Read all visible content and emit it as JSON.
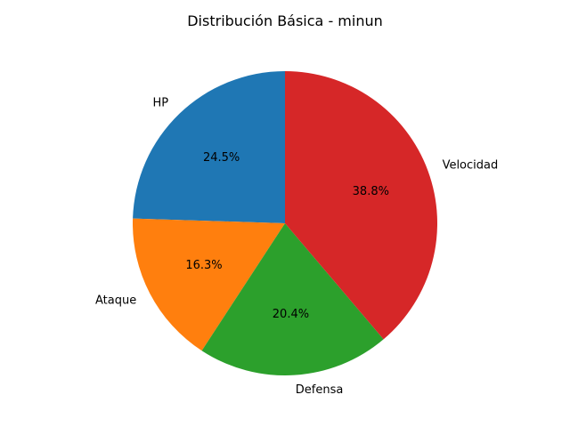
{
  "chart_data": {
    "type": "pie",
    "title": "Distribución Básica - minun",
    "categories": [
      "HP",
      "Ataque",
      "Defensa",
      "Velocidad"
    ],
    "values": [
      24.5,
      16.3,
      20.4,
      38.8
    ],
    "percent_labels": [
      "24.5%",
      "16.3%",
      "20.4%",
      "38.8%"
    ],
    "colors": [
      "#1f77b4",
      "#ff7f0e",
      "#2ca02c",
      "#d62728"
    ],
    "start_angle_deg": 90,
    "direction": "counterclockwise",
    "legend": "none"
  }
}
